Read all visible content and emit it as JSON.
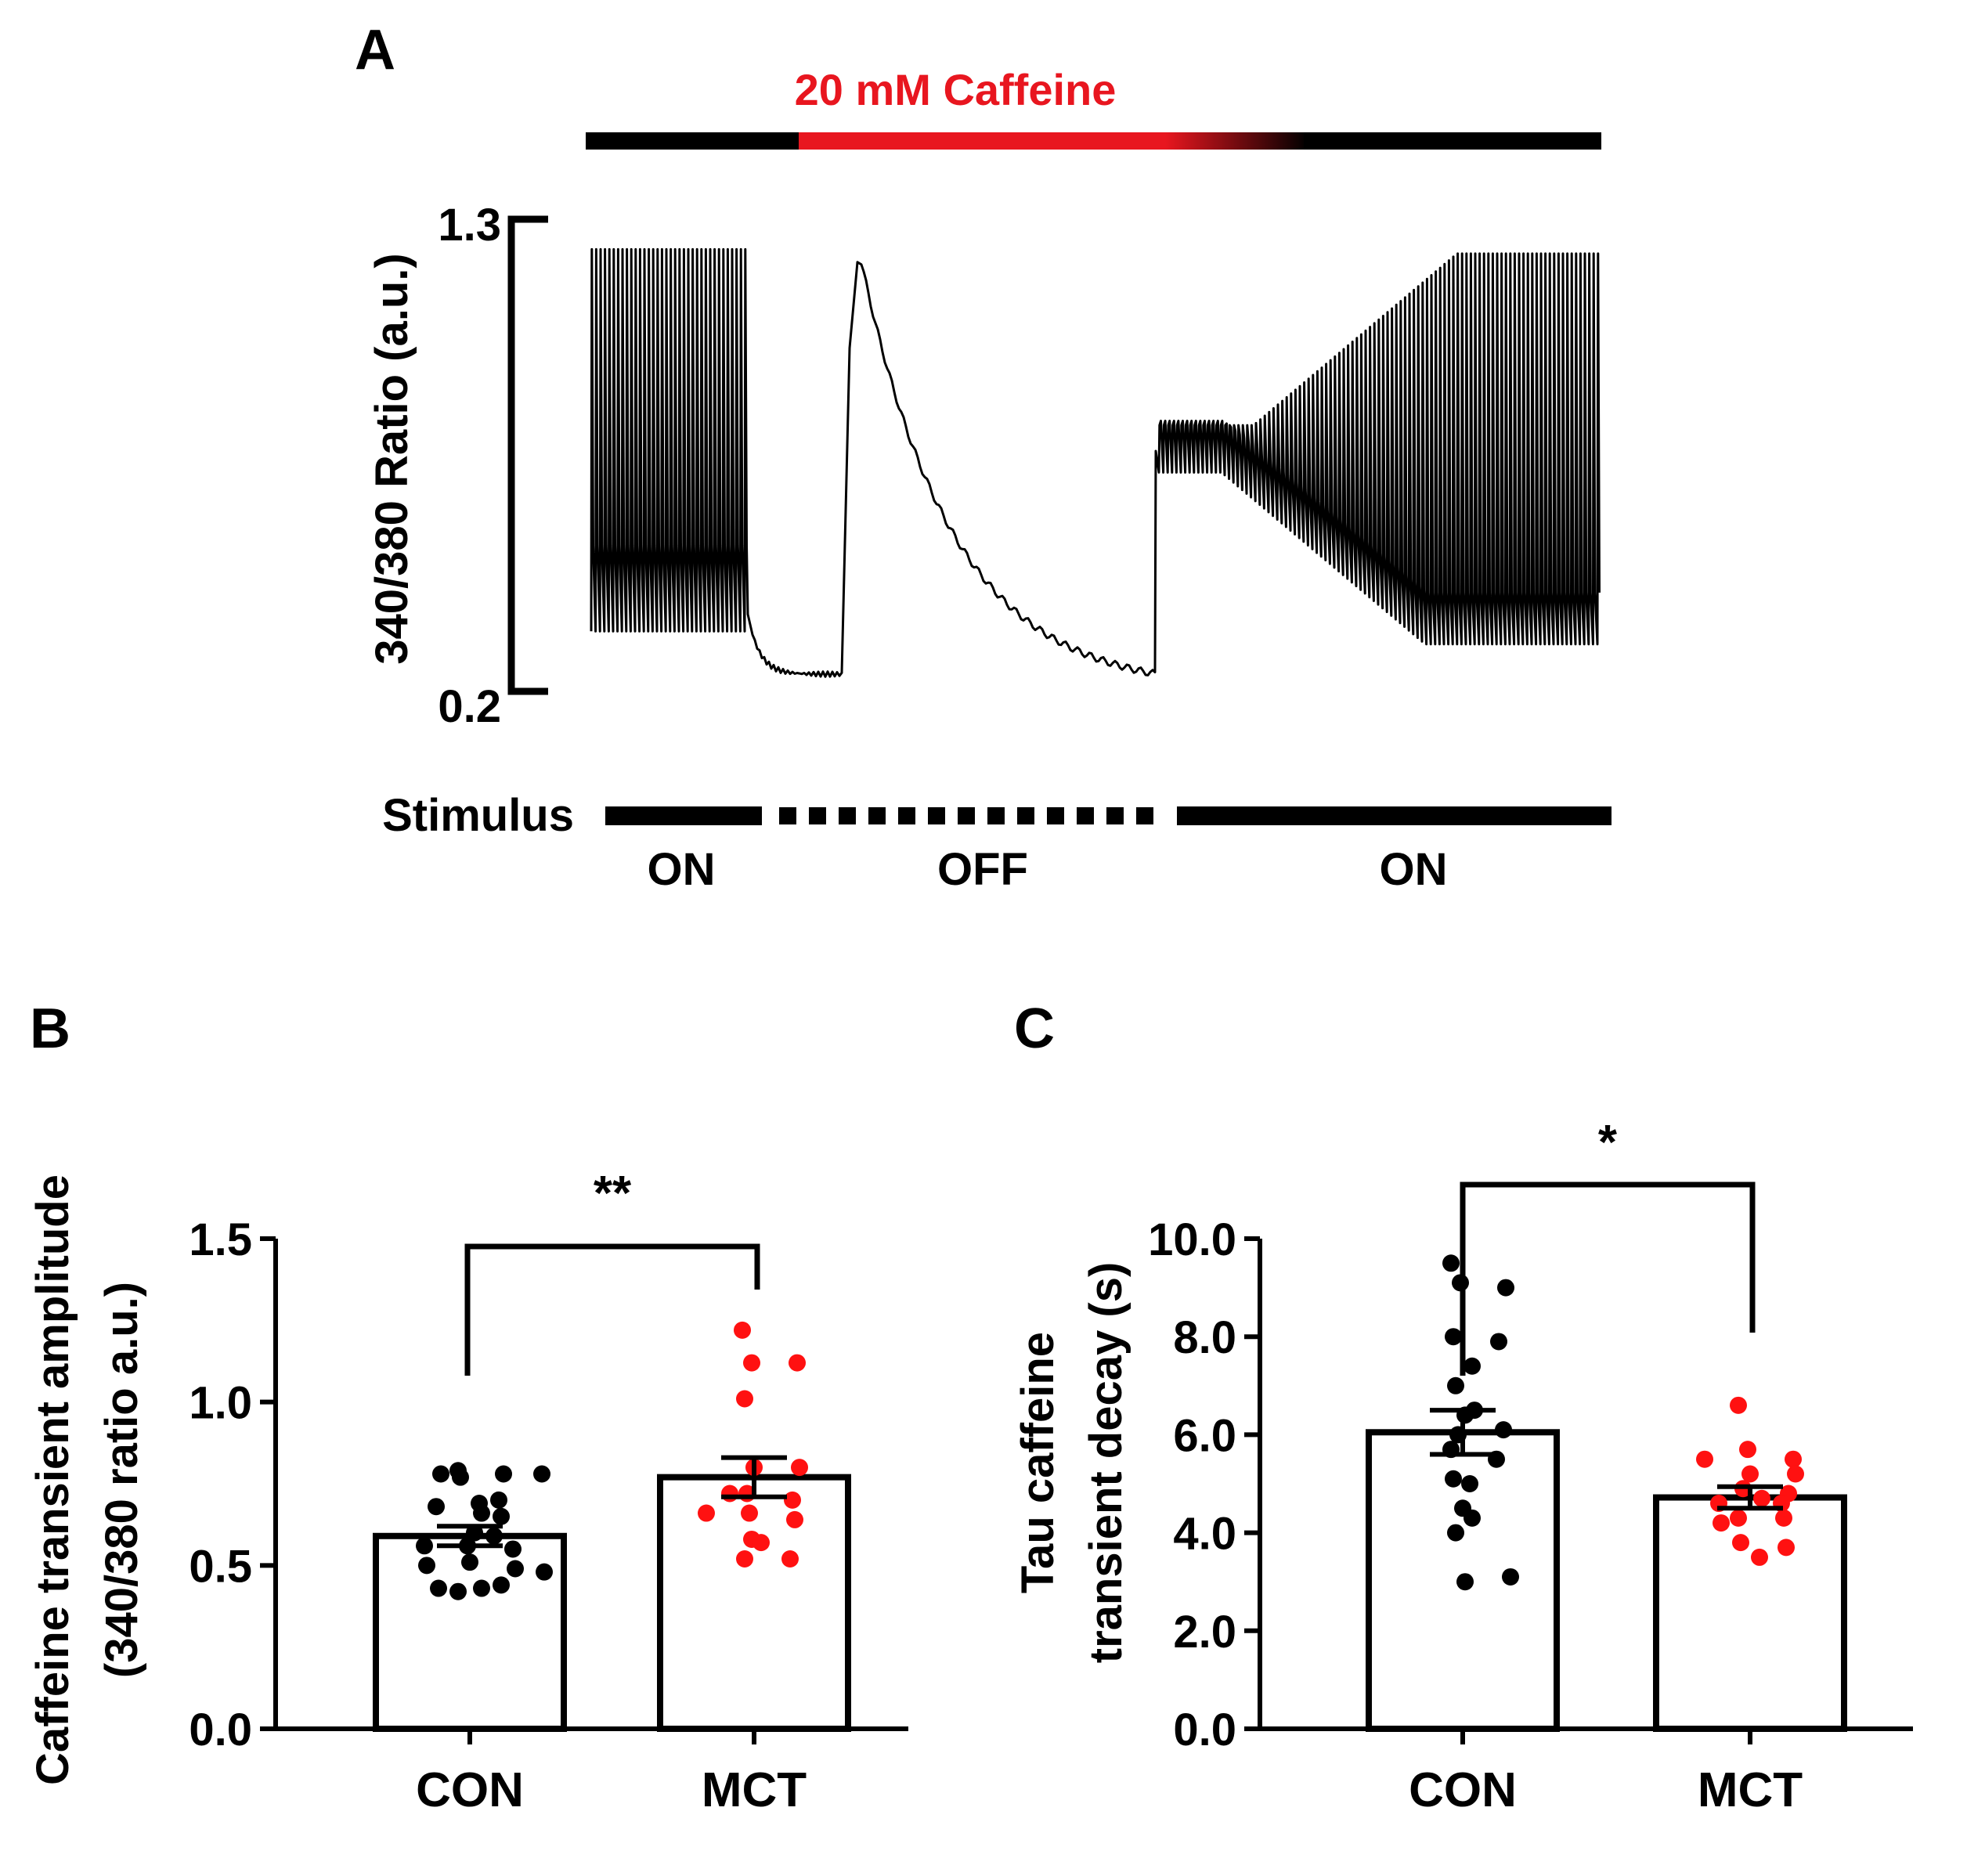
{
  "colors": {
    "con": "#000000",
    "mct": "#ff1111",
    "caffeine": "#e8161f",
    "trace": "#000000"
  },
  "chart_data": [
    {
      "panel": "A",
      "type": "line",
      "caffeine_label": "20 mM Caffeine",
      "ylabel": "340/380 Ratio (a.u.)",
      "yticks": [
        "1.3",
        "0.2"
      ],
      "ylim": [
        0.2,
        1.3
      ],
      "stimulus_label": "Stimulus",
      "stimulus_phases": [
        {
          "label": "ON",
          "style": "solid"
        },
        {
          "label": "OFF",
          "style": "dashed"
        },
        {
          "label": "ON",
          "style": "solid"
        }
      ],
      "trace_phases": {
        "paced_baseline": {
          "diastolic": 0.38,
          "systolic_peak": 1.23
        },
        "pause_baseline": 0.24,
        "caffeine_peak": 1.2,
        "caffeine_decay_end": 0.2,
        "recovery_initial_level": 0.76,
        "paced_recovery": {
          "diastolic": 0.37,
          "systolic_peak": 1.24
        }
      }
    },
    {
      "panel": "B",
      "type": "bar",
      "ylabel_lines": [
        "Caffeine transient amplitude",
        "(340/380 ratio a.u.)"
      ],
      "categories": [
        "CON",
        "MCT"
      ],
      "yticks": [
        "0.0",
        "0.5",
        "1.0",
        "1.5"
      ],
      "ylim": [
        0,
        1.5
      ],
      "series": [
        {
          "name": "CON",
          "mean": 0.59,
          "sem": 0.03,
          "points": [
            0.79,
            0.78,
            0.78,
            0.77,
            0.78,
            0.69,
            0.7,
            0.68,
            0.66,
            0.65,
            0.6,
            0.59,
            0.56,
            0.55,
            0.56,
            0.51,
            0.49,
            0.5,
            0.48,
            0.43,
            0.44,
            0.43,
            0.42
          ]
        },
        {
          "name": "MCT",
          "mean": 0.77,
          "sem": 0.06,
          "points": [
            1.22,
            1.12,
            1.12,
            1.01,
            0.8,
            0.8,
            0.72,
            0.7,
            0.72,
            0.66,
            0.64,
            0.66,
            0.58,
            0.57,
            0.52,
            0.52
          ]
        }
      ],
      "significance": "**"
    },
    {
      "panel": "C",
      "type": "bar",
      "ylabel_lines": [
        "Tau caffeine",
        "transient decay (s)"
      ],
      "categories": [
        "CON",
        "MCT"
      ],
      "yticks": [
        "0.0",
        "2.0",
        "4.0",
        "6.0",
        "8.0",
        "10.0"
      ],
      "ylim": [
        0,
        10
      ],
      "series": [
        {
          "name": "CON",
          "mean": 6.05,
          "sem": 0.45,
          "points": [
            9.5,
            9.1,
            9.0,
            8.0,
            7.9,
            7.4,
            7.0,
            6.4,
            6.5,
            6.0,
            6.1,
            5.7,
            5.5,
            5.0,
            5.1,
            4.5,
            4.3,
            4.0,
            3.0,
            3.1
          ]
        },
        {
          "name": "MCT",
          "mean": 4.72,
          "sem": 0.22,
          "points": [
            6.6,
            5.7,
            5.5,
            5.5,
            5.2,
            5.2,
            4.9,
            4.8,
            4.7,
            4.6,
            4.6,
            4.3,
            4.3,
            4.2,
            3.8,
            3.7,
            3.5
          ]
        }
      ],
      "significance": "*"
    }
  ],
  "panel_labels": [
    "A",
    "B",
    "C"
  ]
}
